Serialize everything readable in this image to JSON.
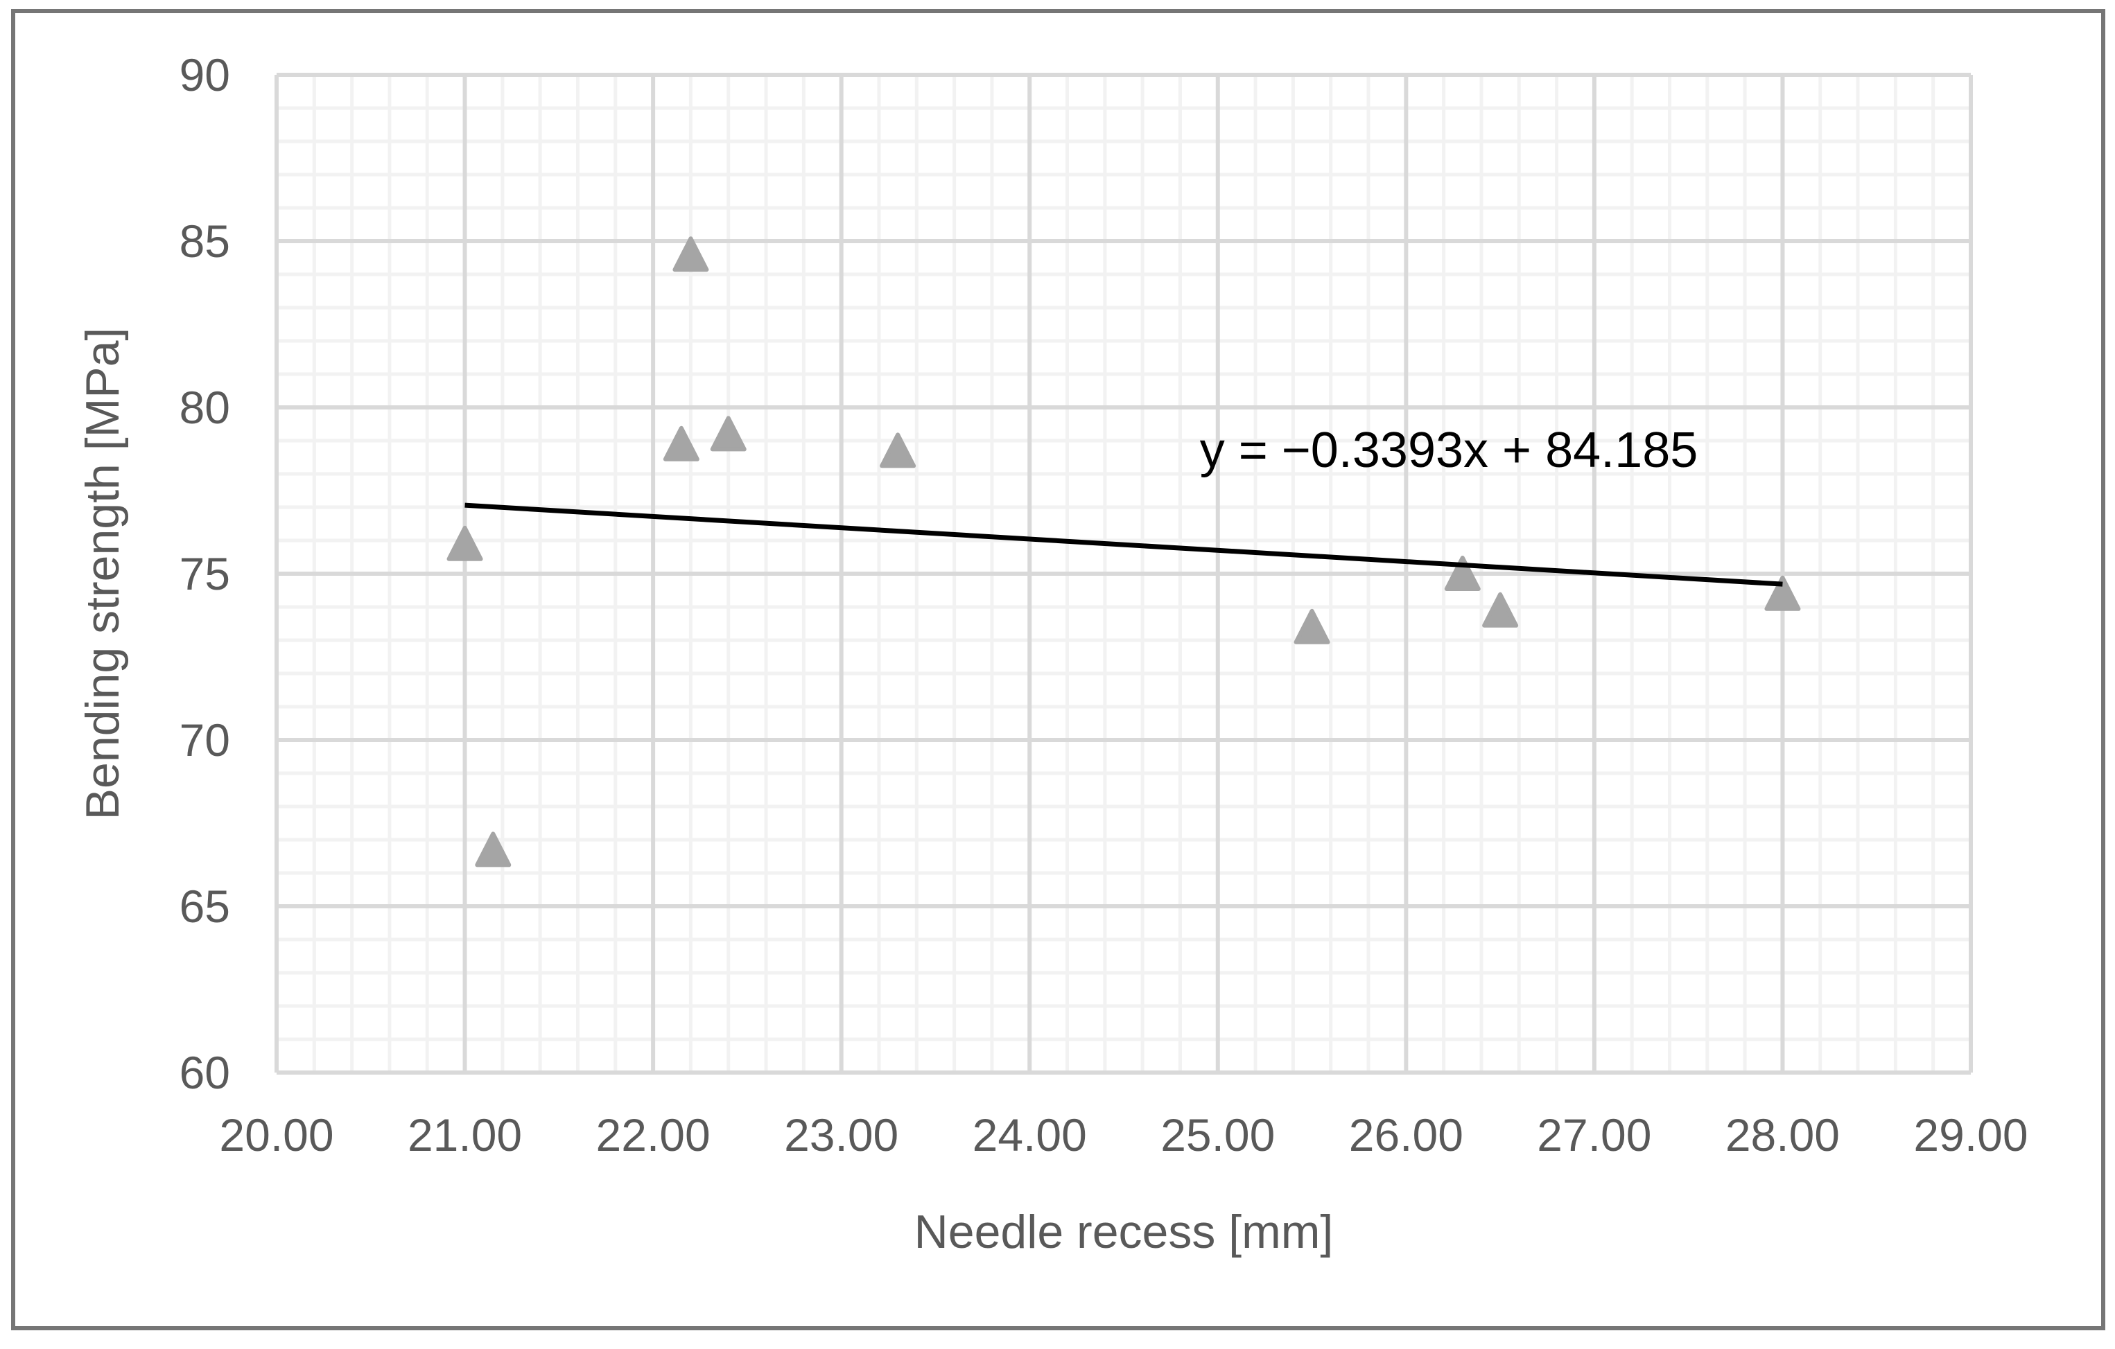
{
  "chart_data": {
    "type": "scatter",
    "title": "",
    "xlabel": "Needle recess [mm]",
    "ylabel": "Bending strength [MPa]",
    "xlim": [
      20,
      29
    ],
    "ylim": [
      60,
      90
    ],
    "x_major_step": 1,
    "x_minor_step": 0.2,
    "y_major_step": 5,
    "y_minor_step": 1,
    "grid": "major+minor",
    "legend_position": "none",
    "x_ticks": [
      {
        "v": 20,
        "label": "20.00"
      },
      {
        "v": 21,
        "label": "21.00"
      },
      {
        "v": 22,
        "label": "22.00"
      },
      {
        "v": 23,
        "label": "23.00"
      },
      {
        "v": 24,
        "label": "24.00"
      },
      {
        "v": 25,
        "label": "25.00"
      },
      {
        "v": 26,
        "label": "26.00"
      },
      {
        "v": 27,
        "label": "27.00"
      },
      {
        "v": 28,
        "label": "28.00"
      },
      {
        "v": 29,
        "label": "29.00"
      }
    ],
    "y_ticks": [
      {
        "v": 60,
        "label": "60"
      },
      {
        "v": 65,
        "label": "65"
      },
      {
        "v": 70,
        "label": "70"
      },
      {
        "v": 75,
        "label": "75"
      },
      {
        "v": 80,
        "label": "80"
      },
      {
        "v": 85,
        "label": "85"
      },
      {
        "v": 90,
        "label": "90"
      }
    ],
    "series": [
      {
        "name": "Bending strength",
        "marker": "triangle",
        "color": "#A5A5A5",
        "points": [
          [
            21.0,
            75.9
          ],
          [
            21.15,
            66.7
          ],
          [
            22.2,
            84.6
          ],
          [
            22.15,
            78.9
          ],
          [
            22.4,
            79.2
          ],
          [
            23.3,
            78.7
          ],
          [
            25.5,
            73.4
          ],
          [
            26.3,
            75.0
          ],
          [
            26.5,
            73.9
          ],
          [
            28.0,
            74.4
          ]
        ]
      }
    ],
    "trendline": {
      "label": "y = −0.3393x + 84.185",
      "slope": -0.3393,
      "intercept": 84.185,
      "x_start": 21,
      "x_end": 28,
      "color": "#000000"
    }
  },
  "colors": {
    "background": "#FFFFFF",
    "frame_border": "#767676",
    "major_grid": "#D9D9D9",
    "minor_grid": "#F2F2F2",
    "tick_text": "#595959",
    "axis_title_text": "#595959",
    "marker_fill": "#A5A5A5",
    "trendline": "#000000",
    "equation_text": "#000000"
  }
}
